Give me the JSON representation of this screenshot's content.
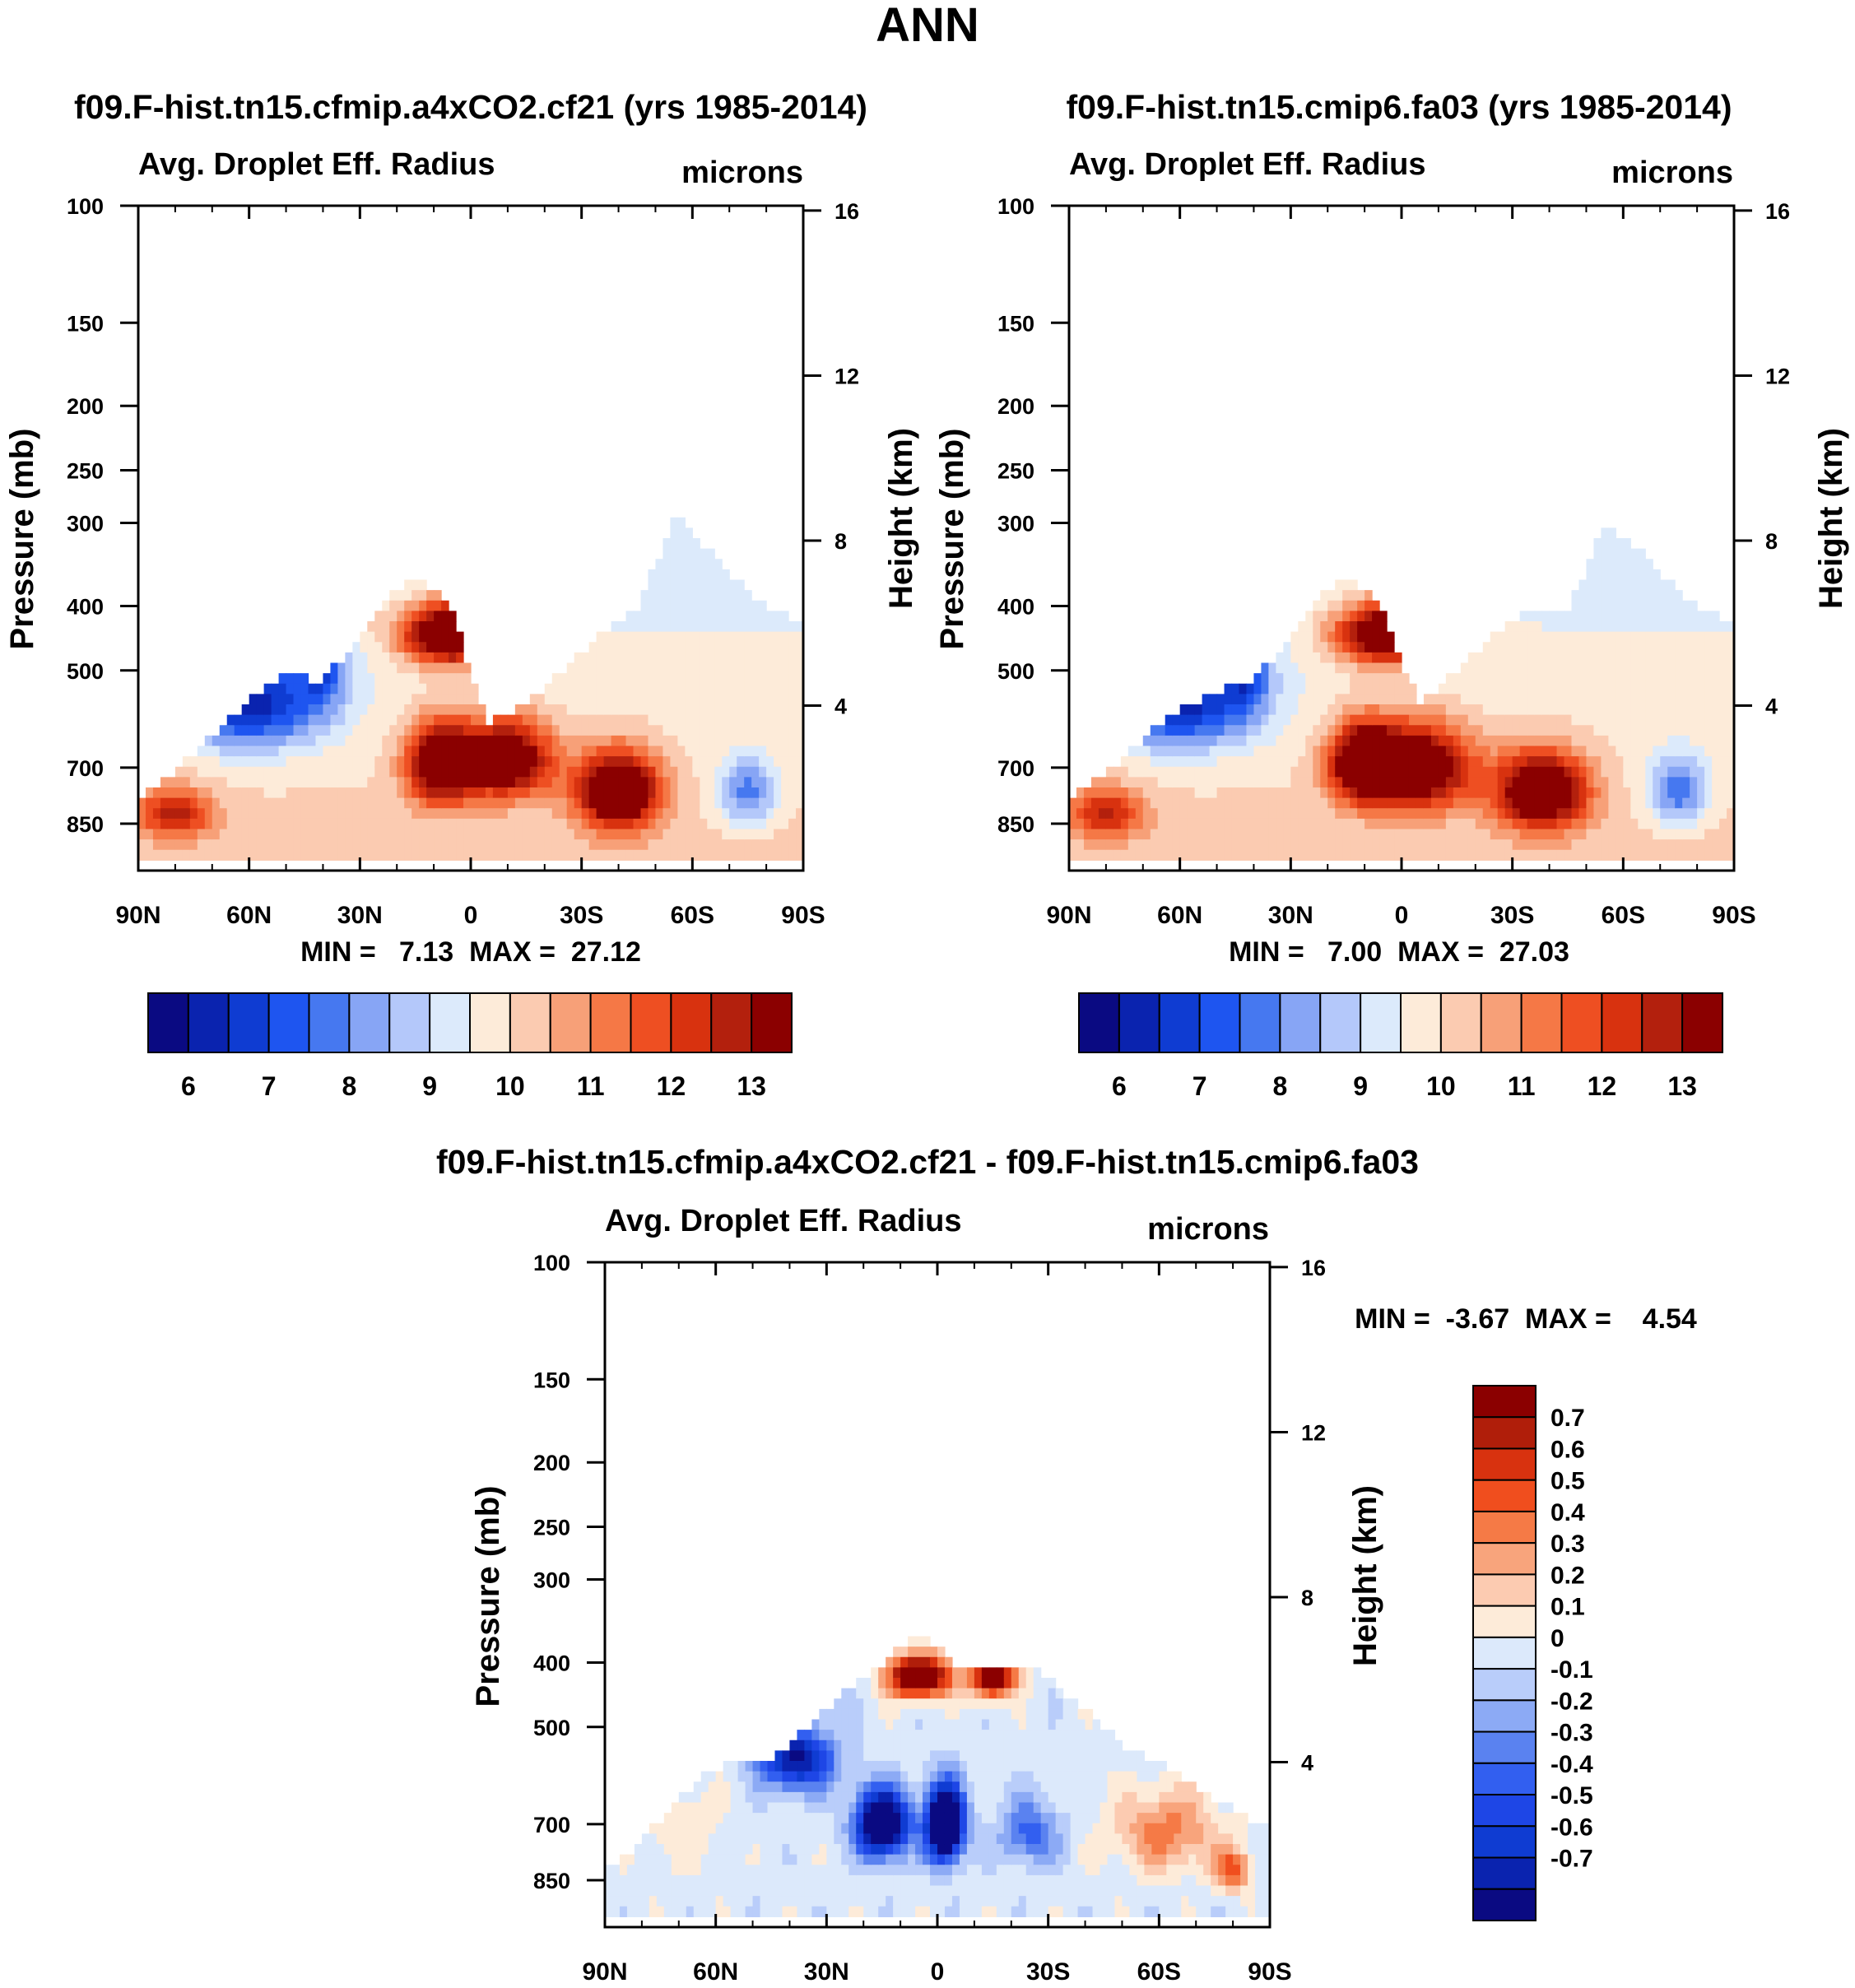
{
  "page_title": "ANN",
  "colors": {
    "seq": [
      "#0a0a82",
      "#0a23af",
      "#0f3cd2",
      "#1e55f0",
      "#4678f0",
      "#87a5f5",
      "#b4c8fa",
      "#dceafb",
      "#fdebd9",
      "#fbcbb1",
      "#f7a078",
      "#f57846",
      "#ee4f22",
      "#d8320f",
      "#b3200d",
      "#8b0000"
    ],
    "diff": [
      "#0a0a82",
      "#0a23af",
      "#0f3cd2",
      "#1e46e6",
      "#325ff0",
      "#5a82f0",
      "#8caaf5",
      "#b9cdfa",
      "#dce9fb",
      "#fdebd9",
      "#fccbb1",
      "#f8a47c",
      "#f57a46",
      "#f04e1e",
      "#d8320f",
      "#b01e0a",
      "#8b0000"
    ]
  },
  "chart_data": [
    {
      "type": "heatmap",
      "title": "f09.F-hist.tn15.cfmip.a4xCO2.cf21 (yrs 1985-2014)",
      "left_title": "Avg. Droplet Eff. Radius",
      "units": "microns",
      "ylabel": "Pressure (mb)",
      "ylabel_right": "Height (km)",
      "x_ticks": [
        "90N",
        "60N",
        "30N",
        "0",
        "30S",
        "60S",
        "90S"
      ],
      "x_range": [
        90,
        -90
      ],
      "y_ticks": [
        100,
        150,
        200,
        250,
        300,
        400,
        500,
        700,
        850
      ],
      "y_ticks_right": [
        16,
        12,
        8,
        4
      ],
      "y_range": [
        100,
        1000
      ],
      "min_max": "MIN =   7.13  MAX =  27.12",
      "colorbar": {
        "orientation": "horizontal",
        "labels": [
          "6",
          "7",
          "8",
          "9",
          "10",
          "11",
          "12",
          "13"
        ],
        "levels": [
          5.5,
          6,
          6.5,
          7,
          7.5,
          8,
          8.5,
          9,
          9.5,
          10,
          10.5,
          11,
          11.5,
          12,
          12.5,
          13
        ],
        "scale": "seq"
      },
      "levels": [
        5.5,
        6,
        6.5,
        7,
        7.5,
        8,
        8.5,
        9,
        9.5,
        10,
        10.5,
        11,
        11.5,
        12,
        12.5,
        13
      ],
      "top_level_mb": [
        430,
        380,
        330,
        290,
        400,
        440,
        500,
        560,
        600,
        400,
        360,
        400,
        480,
        520,
        500,
        540,
        590,
        640,
        690,
        740,
        780
      ],
      "top_level_lat": [
        -90,
        -75,
        -65,
        -55,
        -45,
        -35,
        -25,
        -15,
        -5,
        5,
        15,
        25,
        35,
        42,
        50,
        58,
        65,
        72,
        78,
        85,
        90
      ],
      "field_blobs": [
        {
          "lat": 8,
          "p": 690,
          "sx": 9,
          "sy": 95,
          "a": 5.0
        },
        {
          "lat": -10,
          "p": 680,
          "sx": 12,
          "sy": 90,
          "a": 4.6
        },
        {
          "lat": -40,
          "p": 760,
          "sx": 11,
          "sy": 100,
          "a": 5.2
        },
        {
          "lat": 5,
          "p": 440,
          "sx": 13,
          "sy": 45,
          "a": 6.0
        },
        {
          "lat": 30,
          "p": 380,
          "sx": 3,
          "sy": 40,
          "a": 5.0
        },
        {
          "lat": 80,
          "p": 820,
          "sx": 10,
          "sy": 70,
          "a": 2.8
        },
        {
          "lat": 60,
          "p": 560,
          "sx": 20,
          "sy": 90,
          "a": -3.6
        },
        {
          "lat": 40,
          "p": 480,
          "sx": 6,
          "sy": 80,
          "a": -2.2
        },
        {
          "lat": -75,
          "p": 760,
          "sx": 8,
          "sy": 90,
          "a": -2.2
        }
      ]
    },
    {
      "type": "heatmap",
      "title": "f09.F-hist.tn15.cmip6.fa03 (yrs 1985-2014)",
      "left_title": "Avg. Droplet Eff. Radius",
      "units": "microns",
      "ylabel": "Pressure (mb)",
      "ylabel_right": "Height (km)",
      "x_ticks": [
        "90N",
        "60N",
        "30N",
        "0",
        "30S",
        "60S",
        "90S"
      ],
      "x_range": [
        90,
        -90
      ],
      "y_ticks": [
        100,
        150,
        200,
        250,
        300,
        400,
        500,
        700,
        850
      ],
      "y_ticks_right": [
        16,
        12,
        8,
        4
      ],
      "y_range": [
        100,
        1000
      ],
      "min_max": "MIN =   7.00  MAX =  27.03",
      "colorbar": {
        "orientation": "horizontal",
        "labels": [
          "6",
          "7",
          "8",
          "9",
          "10",
          "11",
          "12",
          "13"
        ],
        "levels": [
          5.5,
          6,
          6.5,
          7,
          7.5,
          8,
          8.5,
          9,
          9.5,
          10,
          10.5,
          11,
          11.5,
          12,
          12.5,
          13
        ],
        "scale": "seq"
      },
      "levels": [
        5.5,
        6,
        6.5,
        7,
        7.5,
        8,
        8.5,
        9,
        9.5,
        10,
        10.5,
        11,
        11.5,
        12,
        12.5,
        13
      ],
      "top_level_mb": [
        430,
        380,
        330,
        300,
        400,
        400,
        440,
        500,
        560,
        400,
        360,
        400,
        480,
        520,
        540,
        560,
        600,
        650,
        700,
        740,
        780
      ],
      "top_level_lat": [
        -90,
        -75,
        -65,
        -55,
        -45,
        -35,
        -25,
        -15,
        -5,
        5,
        15,
        25,
        35,
        42,
        50,
        58,
        65,
        72,
        78,
        85,
        90
      ],
      "field_blobs": [
        {
          "lat": 10,
          "p": 690,
          "sx": 9,
          "sy": 90,
          "a": 5.2
        },
        {
          "lat": -5,
          "p": 700,
          "sx": 14,
          "sy": 100,
          "a": 4.6
        },
        {
          "lat": -38,
          "p": 760,
          "sx": 12,
          "sy": 100,
          "a": 5.0
        },
        {
          "lat": 3,
          "p": 440,
          "sx": 14,
          "sy": 45,
          "a": 5.8
        },
        {
          "lat": 30,
          "p": 370,
          "sx": 3,
          "sy": 30,
          "a": 5.0
        },
        {
          "lat": 80,
          "p": 820,
          "sx": 10,
          "sy": 70,
          "a": 2.6
        },
        {
          "lat": 60,
          "p": 560,
          "sx": 20,
          "sy": 90,
          "a": -3.6
        },
        {
          "lat": 42,
          "p": 480,
          "sx": 6,
          "sy": 80,
          "a": -2.6
        },
        {
          "lat": -75,
          "p": 760,
          "sx": 8,
          "sy": 90,
          "a": -2.4
        }
      ]
    },
    {
      "type": "heatmap",
      "title": "f09.F-hist.tn15.cfmip.a4xCO2.cf21 - f09.F-hist.tn15.cmip6.fa03",
      "left_title": "Avg. Droplet Eff. Radius",
      "units": "microns",
      "ylabel": "Pressure (mb)",
      "ylabel_right": "Height (km)",
      "x_ticks": [
        "90N",
        "60N",
        "30N",
        "0",
        "30S",
        "60S",
        "90S"
      ],
      "x_range": [
        90,
        -90
      ],
      "y_ticks": [
        100,
        150,
        200,
        250,
        300,
        400,
        500,
        700,
        850
      ],
      "y_ticks_right": [
        16,
        12,
        8,
        4
      ],
      "y_range": [
        100,
        1000
      ],
      "min_max": "MIN =  -3.67  MAX =    4.54",
      "colorbar": {
        "orientation": "vertical",
        "labels": [
          "0.7",
          "0.6",
          "0.5",
          "0.4",
          "0.3",
          "0.2",
          "0.1",
          "0",
          "-0.1",
          "-0.2",
          "-0.3",
          "-0.4",
          "-0.5",
          "-0.6",
          "-0.7"
        ],
        "levels": [
          -0.75,
          -0.65,
          -0.55,
          -0.45,
          -0.35,
          -0.25,
          -0.15,
          -0.05,
          0.05,
          0.15,
          0.25,
          0.35,
          0.45,
          0.55,
          0.65,
          0.75
        ],
        "scale": "diff"
      },
      "levels": [
        -0.75,
        -0.65,
        -0.55,
        -0.45,
        -0.35,
        -0.25,
        -0.15,
        -0.05,
        0.05,
        0.15,
        0.25,
        0.35,
        0.45,
        0.55,
        0.65,
        0.75
      ],
      "top_level_mb": [
        690,
        640,
        600,
        560,
        540,
        500,
        460,
        400,
        400,
        400,
        360,
        400,
        440,
        500,
        560,
        560,
        600,
        690,
        760,
        820
      ],
      "top_level_lat": [
        -85,
        -75,
        -68,
        -60,
        -52,
        -45,
        -38,
        -25,
        -15,
        -5,
        5,
        15,
        25,
        35,
        45,
        55,
        65,
        75,
        82,
        90
      ],
      "field_blobs": [
        {
          "lat": 15,
          "p": 700,
          "sx": 7,
          "sy": 80,
          "a": -1.2
        },
        {
          "lat": -2,
          "p": 700,
          "sx": 5,
          "sy": 90,
          "a": -1.4
        },
        {
          "lat": 30,
          "p": 380,
          "sx": 5,
          "sy": 60,
          "a": -1.0
        },
        {
          "lat": 38,
          "p": 560,
          "sx": 10,
          "sy": 60,
          "a": -0.8
        },
        {
          "lat": 5,
          "p": 420,
          "sx": 8,
          "sy": 30,
          "a": 1.2
        },
        {
          "lat": -15,
          "p": 420,
          "sx": 6,
          "sy": 30,
          "a": 1.0
        },
        {
          "lat": 38,
          "p": 460,
          "sx": 3,
          "sy": 25,
          "a": 1.0
        },
        {
          "lat": -62,
          "p": 720,
          "sx": 14,
          "sy": 100,
          "a": 0.4
        },
        {
          "lat": -80,
          "p": 820,
          "sx": 5,
          "sy": 60,
          "a": 0.5
        },
        {
          "lat": 70,
          "p": 700,
          "sx": 10,
          "sy": 120,
          "a": 0.12
        },
        {
          "lat": -25,
          "p": 720,
          "sx": 8,
          "sy": 80,
          "a": -0.4
        }
      ]
    }
  ]
}
